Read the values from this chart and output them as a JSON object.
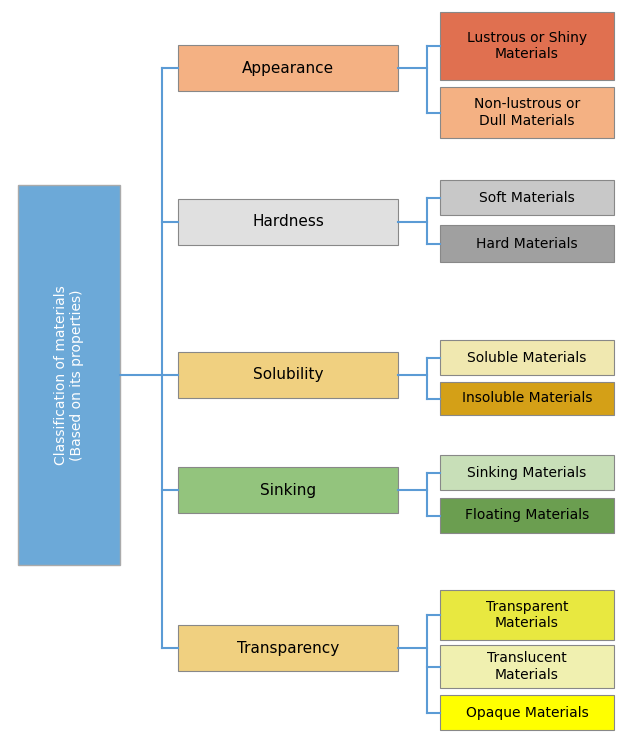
{
  "root_label": "Classification of materials\n(Based on its properties)",
  "root_color": "#6CA9D8",
  "root_text_color": "#FFFFFF",
  "categories": [
    {
      "label": "Appearance",
      "color": "#F4B183",
      "text_color": "#000000"
    },
    {
      "label": "Hardness",
      "color": "#E0E0E0",
      "text_color": "#000000"
    },
    {
      "label": "Solubility",
      "color": "#F0D080",
      "text_color": "#000000"
    },
    {
      "label": "Sinking",
      "color": "#93C47D",
      "text_color": "#000000"
    },
    {
      "label": "Transparency",
      "color": "#F0D080",
      "text_color": "#000000"
    }
  ],
  "leaves": [
    {
      "label": "Lustrous or Shiny\nMaterials",
      "color": "#E07050",
      "text_color": "#000000",
      "cat_idx": 0
    },
    {
      "label": "Non-lustrous or\nDull Materials",
      "color": "#F4B183",
      "text_color": "#000000",
      "cat_idx": 0
    },
    {
      "label": "Soft Materials",
      "color": "#C8C8C8",
      "text_color": "#000000",
      "cat_idx": 1
    },
    {
      "label": "Hard Materials",
      "color": "#A0A0A0",
      "text_color": "#000000",
      "cat_idx": 1
    },
    {
      "label": "Soluble Materials",
      "color": "#F0E8B0",
      "text_color": "#000000",
      "cat_idx": 2
    },
    {
      "label": "Insoluble Materials",
      "color": "#D4A017",
      "text_color": "#000000",
      "cat_idx": 2
    },
    {
      "label": "Sinking Materials",
      "color": "#C8DFB8",
      "text_color": "#000000",
      "cat_idx": 3
    },
    {
      "label": "Floating Materials",
      "color": "#6B9E50",
      "text_color": "#000000",
      "cat_idx": 3
    },
    {
      "label": "Transparent\nMaterials",
      "color": "#E8E840",
      "text_color": "#000000",
      "cat_idx": 4
    },
    {
      "label": "Translucent\nMaterials",
      "color": "#F0F0B0",
      "text_color": "#000000",
      "cat_idx": 4
    },
    {
      "label": "Opaque Materials",
      "color": "#FFFF00",
      "text_color": "#000000",
      "cat_idx": 4
    }
  ],
  "line_color": "#5B9BD5",
  "line_width": 1.5,
  "background_color": "#FFFFFF"
}
